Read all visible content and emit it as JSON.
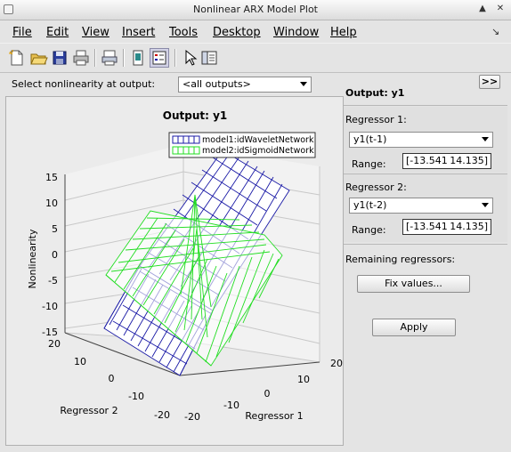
{
  "window": {
    "title": "Nonlinear ARX Model Plot",
    "minimize": "▲",
    "close": "✕"
  },
  "menubar": [
    {
      "label": "File"
    },
    {
      "label": "Edit"
    },
    {
      "label": "View"
    },
    {
      "label": "Insert"
    },
    {
      "label": "Tools"
    },
    {
      "label": "Desktop"
    },
    {
      "label": "Window"
    },
    {
      "label": "Help"
    }
  ],
  "toolbar": [
    "new-figure-icon",
    "open-folder-icon",
    "save-icon",
    "print-icon",
    "print-preview-icon",
    "link-plot-icon",
    "legend-toggle-icon",
    "pointer-icon",
    "property-editor-icon"
  ],
  "output_select": {
    "label": "Select nonlinearity at output:",
    "value": "<all outputs>"
  },
  "right_panel": {
    "expand_button": ">>",
    "output_title": "Output: y1",
    "regressor1": {
      "label": "Regressor 1:",
      "value": "y1(t-1)",
      "range_label": "Range:",
      "range_min": "[-13.541",
      "range_max": "14.135]"
    },
    "regressor2": {
      "label": "Regressor 2:",
      "value": "y1(t-2)",
      "range_label": "Range:",
      "range_min": "[-13.541",
      "range_max": "14.135]"
    },
    "remaining_label": "Remaining regressors:",
    "fix_values_button": "Fix values...",
    "apply_button": "Apply"
  },
  "plot": {
    "title": "Output: y1",
    "zlabel": "Nonlinearity",
    "xlabel": "Regressor 1",
    "ylabel": "Regressor 2",
    "z_ticks": [
      "15",
      "10",
      "5",
      "0",
      "-5",
      "-10",
      "-15"
    ],
    "x_ticks": [
      "-20",
      "-10",
      "0",
      "10",
      "20"
    ],
    "y_ticks": [
      "20",
      "10",
      "0",
      "-10",
      "-20"
    ],
    "legend": [
      {
        "name": "model1:idWaveletNetwork",
        "color": "#1a1aa6"
      },
      {
        "name": "model2:idSigmoidNetwork",
        "color": "#22dd22"
      }
    ]
  }
}
